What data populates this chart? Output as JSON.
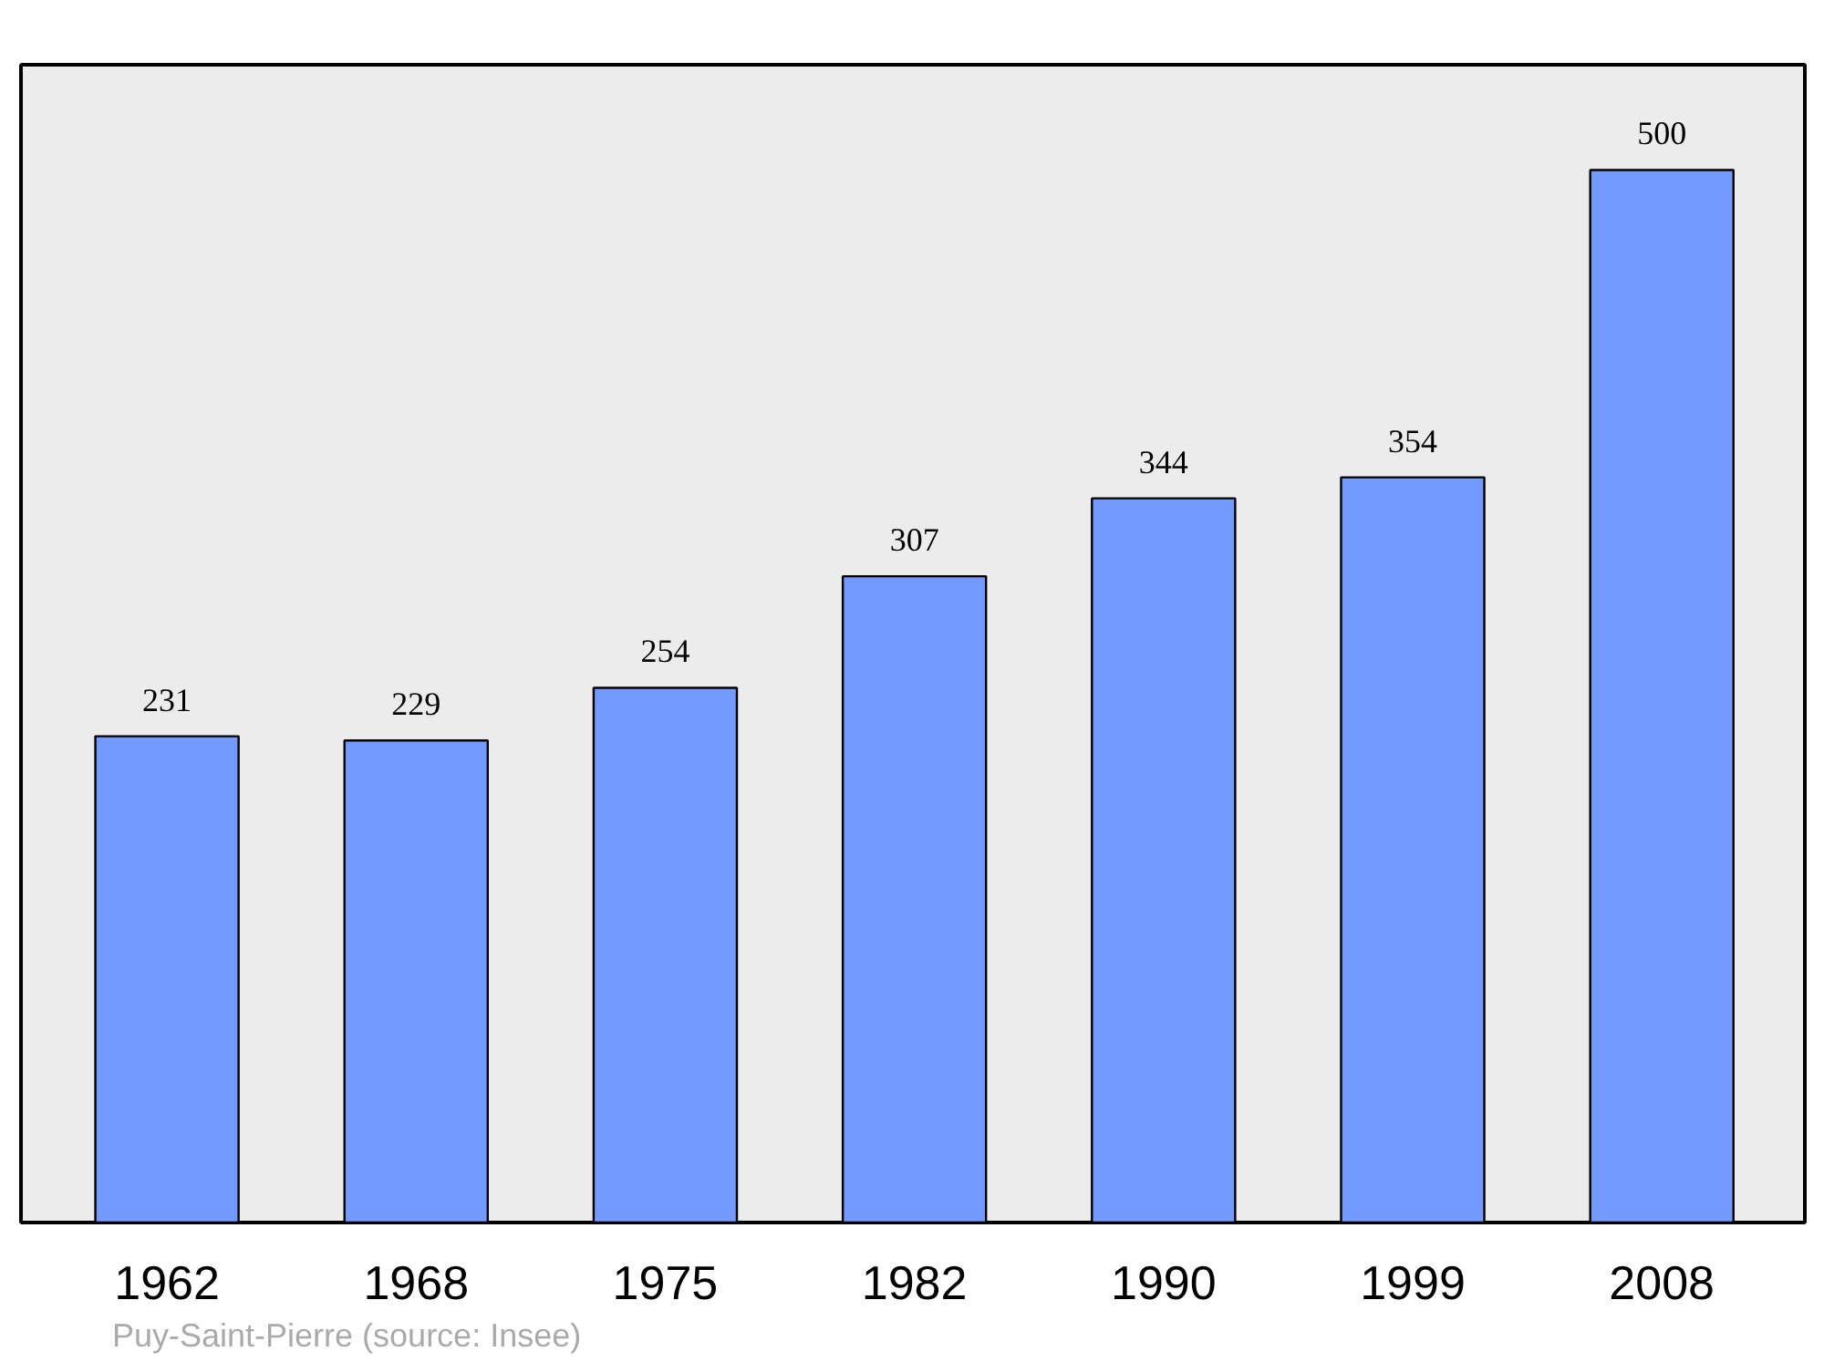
{
  "chart_data": {
    "type": "bar",
    "categories": [
      "1962",
      "1968",
      "1975",
      "1982",
      "1990",
      "1999",
      "2008"
    ],
    "values": [
      231,
      229,
      254,
      307,
      344,
      354,
      500
    ],
    "color": "#7499ff",
    "ylim": [
      0,
      550
    ],
    "data_labels": true,
    "tick_labels": "x",
    "grid": false,
    "annotations": [
      "Puy-Saint-Pierre    (source: Insee)"
    ]
  }
}
